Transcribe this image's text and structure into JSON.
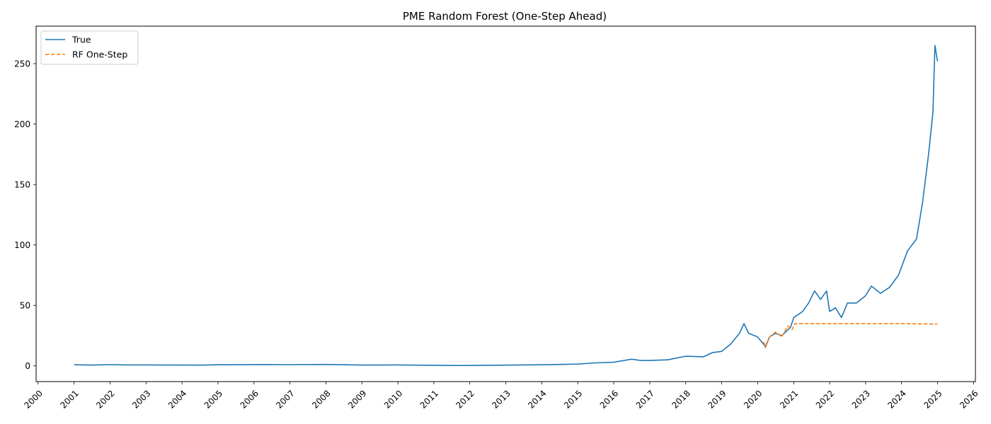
{
  "chart_data": {
    "type": "line",
    "title": "PME Random Forest (One-Step Ahead)",
    "xlabel": "",
    "ylabel": "",
    "x_axis": "date",
    "xlim": [
      "1999-12-12",
      "2026-01-20"
    ],
    "ylim": [
      -13,
      281
    ],
    "x_ticks": [
      "2000",
      "2001",
      "2002",
      "2003",
      "2004",
      "2005",
      "2006",
      "2007",
      "2008",
      "2009",
      "2010",
      "2011",
      "2012",
      "2013",
      "2014",
      "2015",
      "2016",
      "2017",
      "2018",
      "2019",
      "2020",
      "2021",
      "2022",
      "2023",
      "2024",
      "2025",
      "2026"
    ],
    "y_ticks": [
      0,
      50,
      100,
      150,
      200,
      250
    ],
    "grid": false,
    "legend": {
      "placement": "top-left",
      "entries": [
        "True",
        "RF One-Step"
      ]
    },
    "series": [
      {
        "name": "True",
        "color": "#1f77b4",
        "style": "solid",
        "points": [
          [
            "2001-01-02",
            0.9
          ],
          [
            "2001-07-01",
            0.7
          ],
          [
            "2002-01-01",
            1.0
          ],
          [
            "2002-07-01",
            0.8
          ],
          [
            "2003-01-01",
            0.8
          ],
          [
            "2004-01-01",
            0.7
          ],
          [
            "2004-07-01",
            0.6
          ],
          [
            "2005-01-01",
            0.9
          ],
          [
            "2006-01-01",
            1.1
          ],
          [
            "2007-01-01",
            1.0
          ],
          [
            "2008-01-01",
            1.2
          ],
          [
            "2009-01-01",
            0.7
          ],
          [
            "2010-01-01",
            0.8
          ],
          [
            "2011-01-01",
            0.5
          ],
          [
            "2011-07-01",
            0.3
          ],
          [
            "2012-01-01",
            0.3
          ],
          [
            "2013-01-01",
            0.6
          ],
          [
            "2014-01-01",
            0.9
          ],
          [
            "2015-01-01",
            1.5
          ],
          [
            "2015-07-01",
            2.5
          ],
          [
            "2016-01-01",
            3.0
          ],
          [
            "2016-07-01",
            5.5
          ],
          [
            "2016-10-01",
            4.5
          ],
          [
            "2017-01-01",
            4.5
          ],
          [
            "2017-07-01",
            5.0
          ],
          [
            "2018-01-01",
            8.0
          ],
          [
            "2018-07-01",
            7.5
          ],
          [
            "2018-10-01",
            11.0
          ],
          [
            "2019-01-01",
            12.0
          ],
          [
            "2019-04-01",
            18.0
          ],
          [
            "2019-07-01",
            27.0
          ],
          [
            "2019-08-15",
            35.0
          ],
          [
            "2019-10-01",
            27.0
          ],
          [
            "2020-01-01",
            24.0
          ],
          [
            "2020-03-20",
            16.0
          ],
          [
            "2020-05-01",
            24.0
          ],
          [
            "2020-07-01",
            27.0
          ],
          [
            "2020-09-01",
            25.0
          ],
          [
            "2020-12-01",
            32.0
          ],
          [
            "2021-01-01",
            40.0
          ],
          [
            "2021-04-01",
            45.0
          ],
          [
            "2021-06-01",
            52.0
          ],
          [
            "2021-08-01",
            62.0
          ],
          [
            "2021-10-01",
            55.0
          ],
          [
            "2021-12-01",
            62.0
          ],
          [
            "2022-01-01",
            45.0
          ],
          [
            "2022-03-01",
            48.0
          ],
          [
            "2022-05-01",
            40.0
          ],
          [
            "2022-07-01",
            52.0
          ],
          [
            "2022-10-01",
            52.0
          ],
          [
            "2023-01-01",
            58.0
          ],
          [
            "2023-03-01",
            66.0
          ],
          [
            "2023-06-01",
            60.0
          ],
          [
            "2023-09-01",
            65.0
          ],
          [
            "2023-12-01",
            75.0
          ],
          [
            "2024-03-01",
            95.0
          ],
          [
            "2024-06-01",
            105.0
          ],
          [
            "2024-08-01",
            135.0
          ],
          [
            "2024-10-01",
            175.0
          ],
          [
            "2024-11-15",
            210.0
          ],
          [
            "2024-12-05",
            265.0
          ],
          [
            "2024-12-31",
            252.0
          ]
        ]
      },
      {
        "name": "RF One-Step",
        "color": "#ff7f0e",
        "style": "dashed",
        "points": [
          [
            "2020-03-01",
            20.0
          ],
          [
            "2020-03-20",
            15.0
          ],
          [
            "2020-05-01",
            24.0
          ],
          [
            "2020-07-01",
            28.0
          ],
          [
            "2020-09-01",
            24.0
          ],
          [
            "2020-11-01",
            33.0
          ],
          [
            "2020-12-15",
            30.0
          ],
          [
            "2021-01-15",
            35.0
          ],
          [
            "2022-01-01",
            35.0
          ],
          [
            "2023-01-01",
            35.0
          ],
          [
            "2024-01-01",
            35.0
          ],
          [
            "2024-12-31",
            34.5
          ]
        ]
      }
    ]
  }
}
